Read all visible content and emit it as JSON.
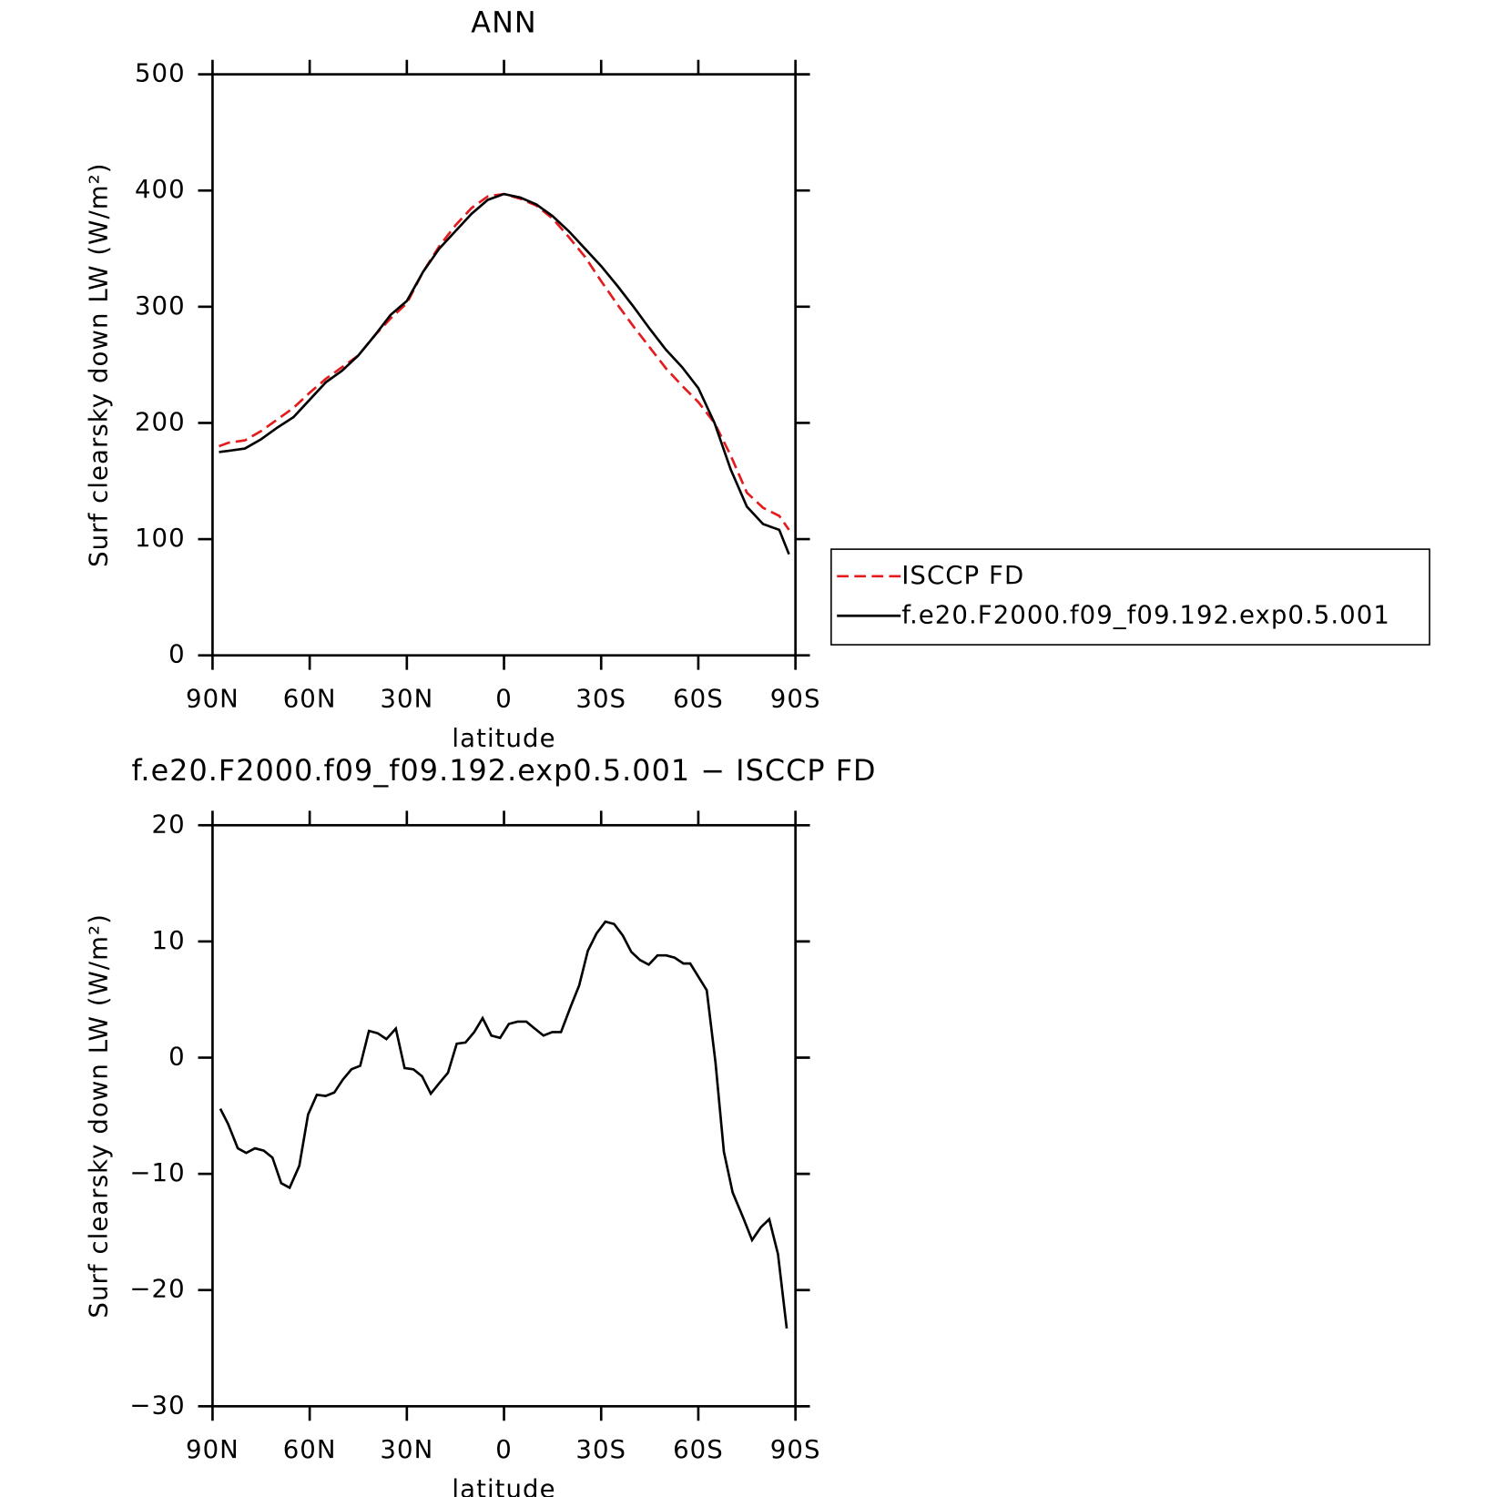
{
  "chart_data": [
    {
      "type": "line",
      "title": "ANN",
      "xlabel": "latitude",
      "ylabel": "Surf clearsky down LW (W/m²)",
      "xlim": [
        90,
        -90
      ],
      "xticks": [
        {
          "value": 90,
          "label": "90N"
        },
        {
          "value": 60,
          "label": "60N"
        },
        {
          "value": 30,
          "label": "30N"
        },
        0,
        {
          "value": -30,
          "label": "30S"
        },
        {
          "value": -60,
          "label": "60S"
        },
        {
          "value": -90,
          "label": "90S"
        }
      ],
      "ylim": [
        0,
        500
      ],
      "yticks": [
        0,
        100,
        200,
        300,
        400,
        500
      ],
      "legend": "right",
      "x": [
        88,
        85,
        80,
        75,
        70,
        65,
        60,
        55,
        50,
        45,
        40,
        35,
        30,
        25,
        20,
        15,
        10,
        5,
        0,
        -5,
        -10,
        -15,
        -20,
        -25,
        -30,
        -35,
        -40,
        -45,
        -50,
        -55,
        -60,
        -65,
        -70,
        -75,
        -80,
        -85,
        -88
      ],
      "series": [
        {
          "name": "ISCCP FD",
          "color": "#e41a1c",
          "dash": true,
          "values": [
            180,
            183,
            185,
            193,
            203,
            213,
            226,
            238,
            248,
            258,
            275,
            290,
            303,
            330,
            352,
            370,
            385,
            395,
            397,
            393,
            387,
            376,
            360,
            343,
            322,
            302,
            283,
            265,
            247,
            232,
            218,
            200,
            172,
            140,
            127,
            120,
            108
          ]
        },
        {
          "name": "f.e20.F2000.f09_f09.192.exp0.5.001",
          "color": "#000000",
          "dash": false,
          "values": [
            175,
            176,
            178,
            186,
            196,
            205,
            220,
            235,
            245,
            258,
            275,
            293,
            305,
            330,
            350,
            365,
            380,
            392,
            397,
            394,
            388,
            378,
            365,
            350,
            335,
            318,
            300,
            281,
            263,
            248,
            230,
            200,
            160,
            128,
            113,
            108,
            87
          ]
        }
      ]
    },
    {
      "type": "line",
      "title": "f.e20.F2000.f09_f09.192.exp0.5.001 − ISCCP FD",
      "xlabel": "latitude",
      "ylabel": "Surf clearsky down LW (W/m²)",
      "xlim": [
        90,
        -90
      ],
      "xticks": [
        {
          "value": 90,
          "label": "90N"
        },
        {
          "value": 60,
          "label": "60N"
        },
        {
          "value": 30,
          "label": "30N"
        },
        0,
        {
          "value": -30,
          "label": "30S"
        },
        {
          "value": -60,
          "label": "60S"
        },
        {
          "value": -90,
          "label": "90S"
        }
      ],
      "ylim": [
        -30,
        20
      ],
      "yticks": [
        {
          "value": -30,
          "label": "−30"
        },
        {
          "value": -20,
          "label": "−20"
        },
        {
          "value": -10,
          "label": "−10"
        },
        0,
        10,
        20
      ],
      "x": [
        87.6,
        85.2,
        82.2,
        79.6,
        76.9,
        74.2,
        71.5,
        68.8,
        66.2,
        63.2,
        60.5,
        57.8,
        55.1,
        52.4,
        49.8,
        47.1,
        44.4,
        41.7,
        39.0,
        36.3,
        33.4,
        30.7,
        28.0,
        25.3,
        22.6,
        20.0,
        17.3,
        14.6,
        11.9,
        9.2,
        6.6,
        3.9,
        1.2,
        -1.5,
        -4.2,
        -6.9,
        -9.5,
        -12.2,
        -14.9,
        -17.6,
        -20.6,
        -23.2,
        -25.9,
        -28.6,
        -31.3,
        -34.0,
        -36.7,
        -39.3,
        -42.0,
        -44.7,
        -47.4,
        -50.1,
        -52.7,
        -55.4,
        -57.5,
        -62.6,
        -65.3,
        -67.9,
        -70.6,
        -73.9,
        -76.6,
        -79.3,
        -81.9,
        -84.6,
        -87.3
      ],
      "series": [
        {
          "color": "#000000",
          "dash": false,
          "values": [
            -4.4,
            -5.7,
            -7.8,
            -8.2,
            -7.8,
            -8.0,
            -8.6,
            -10.8,
            -11.2,
            -9.3,
            -4.9,
            -3.2,
            -3.3,
            -3.0,
            -1.9,
            -1.0,
            -0.7,
            2.3,
            2.1,
            1.6,
            2.5,
            -0.9,
            -1.0,
            -1.6,
            -3.1,
            -2.2,
            -1.3,
            1.2,
            1.3,
            2.2,
            3.4,
            1.9,
            1.7,
            2.9,
            3.1,
            3.1,
            2.5,
            1.9,
            2.2,
            2.2,
            4.4,
            6.2,
            9.2,
            10.7,
            11.7,
            11.5,
            10.5,
            9.1,
            8.4,
            8.0,
            8.8,
            8.8,
            8.6,
            8.1,
            8.1,
            5.8,
            -0.4,
            -8.1,
            -11.6,
            -13.8,
            -15.7,
            -14.6,
            -13.9,
            -16.9,
            -23.3
          ]
        }
      ]
    }
  ]
}
